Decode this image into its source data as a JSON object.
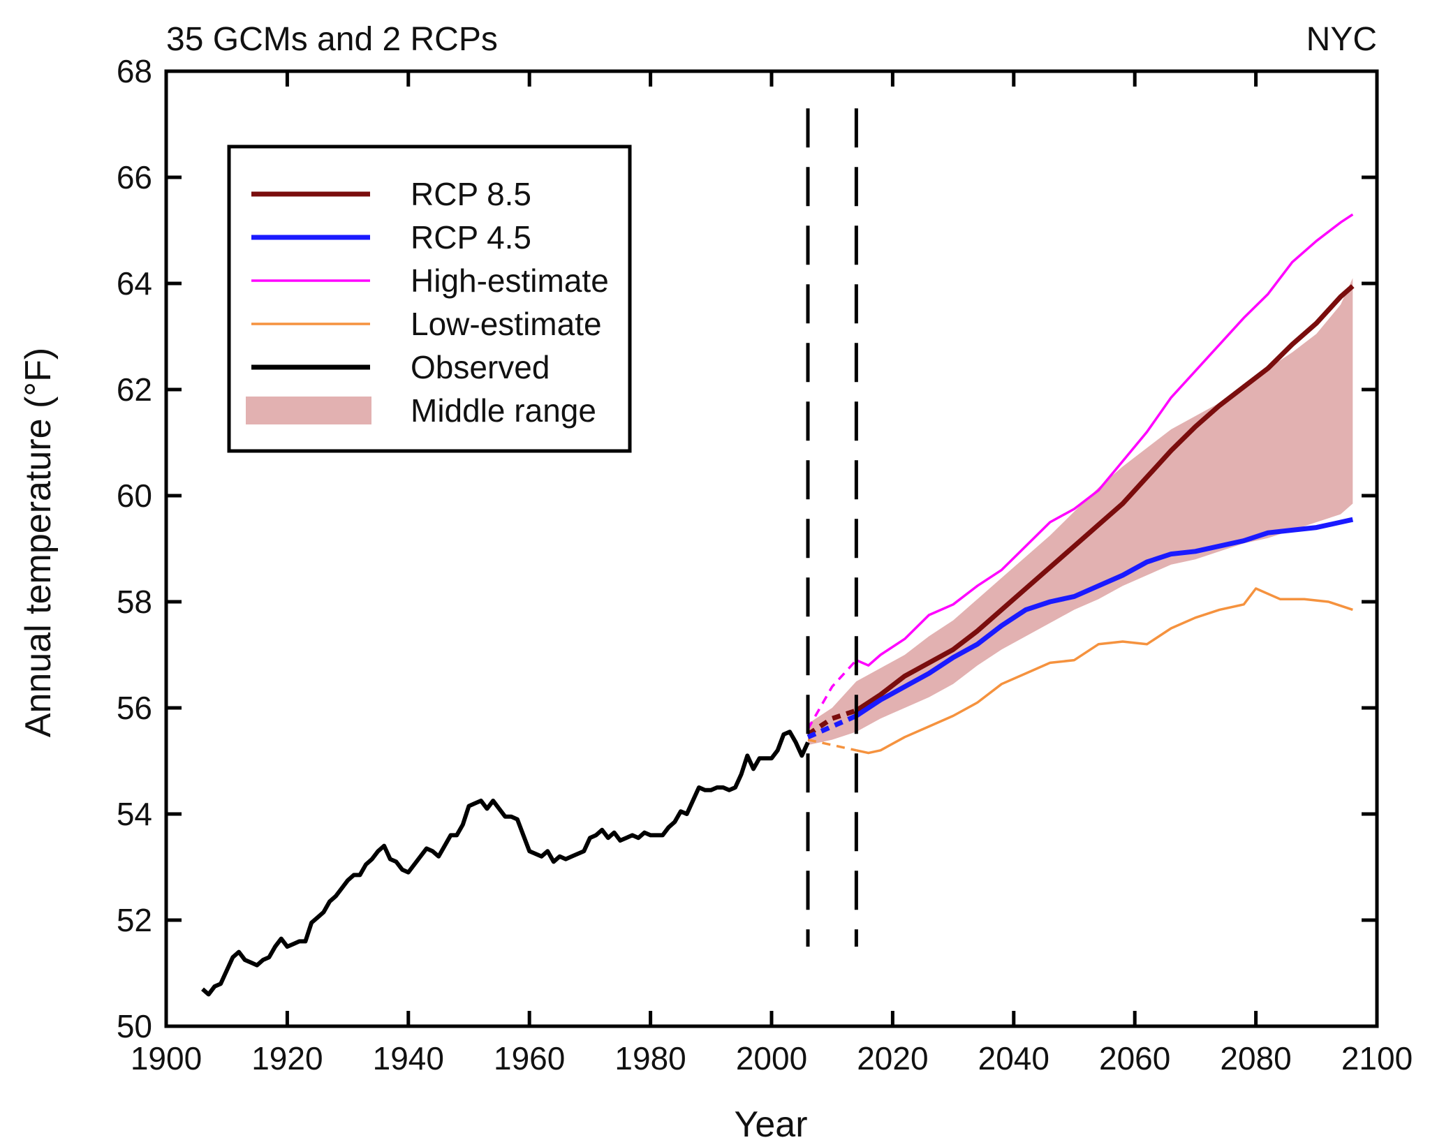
{
  "chart_data": {
    "type": "line",
    "title_left": "35 GCMs and 2 RCPs",
    "title_right": "NYC",
    "xlabel": "Year",
    "ylabel": "Annual temperature (°F)",
    "xlim": [
      1900,
      2100
    ],
    "ylim": [
      50,
      68
    ],
    "xticks": [
      1900,
      1920,
      1940,
      1960,
      1980,
      2000,
      2020,
      2040,
      2060,
      2080,
      2100
    ],
    "yticks": [
      50,
      52,
      54,
      56,
      58,
      60,
      62,
      64,
      66,
      68
    ],
    "grid": false,
    "legend_position": "top-left",
    "legend": [
      {
        "label": "RCP 8.5",
        "color": "#7a0d0d",
        "style": "thick-line"
      },
      {
        "label": "RCP 4.5",
        "color": "#1a1aff",
        "style": "thick-line"
      },
      {
        "label": "High-estimate",
        "color": "#ff00ff",
        "style": "thin-line"
      },
      {
        "label": "Low-estimate",
        "color": "#f5923e",
        "style": "thin-line"
      },
      {
        "label": "Observed",
        "color": "#000000",
        "style": "thick-line"
      },
      {
        "label": "Middle range",
        "color": "#e2b1b1",
        "style": "band"
      }
    ],
    "vertical_dashed_lines_x": [
      2006,
      2014
    ],
    "series": [
      {
        "name": "Observed",
        "color": "#000000",
        "x": [
          1906,
          1907,
          1908,
          1909,
          1910,
          1911,
          1912,
          1913,
          1914,
          1915,
          1916,
          1917,
          1918,
          1919,
          1920,
          1921,
          1922,
          1923,
          1924,
          1925,
          1926,
          1927,
          1928,
          1929,
          1930,
          1931,
          1932,
          1933,
          1934,
          1935,
          1936,
          1937,
          1938,
          1939,
          1940,
          1941,
          1942,
          1943,
          1944,
          1945,
          1946,
          1947,
          1948,
          1949,
          1950,
          1951,
          1952,
          1953,
          1954,
          1955,
          1956,
          1957,
          1958,
          1959,
          1960,
          1961,
          1962,
          1963,
          1964,
          1965,
          1966,
          1967,
          1968,
          1969,
          1970,
          1971,
          1972,
          1973,
          1974,
          1975,
          1976,
          1977,
          1978,
          1979,
          1980,
          1981,
          1982,
          1983,
          1984,
          1985,
          1986,
          1987,
          1988,
          1989,
          1990,
          1991,
          1992,
          1993,
          1994,
          1995,
          1996,
          1997,
          1998,
          1999,
          2000,
          2001,
          2002,
          2003,
          2004,
          2005,
          2006
        ],
        "values": [
          50.7,
          50.6,
          50.75,
          50.8,
          51.05,
          51.3,
          51.4,
          51.25,
          51.2,
          51.15,
          51.25,
          51.3,
          51.5,
          51.65,
          51.5,
          51.55,
          51.6,
          51.6,
          51.95,
          52.05,
          52.15,
          52.35,
          52.45,
          52.6,
          52.75,
          52.85,
          52.85,
          53.05,
          53.15,
          53.3,
          53.4,
          53.15,
          53.1,
          52.95,
          52.9,
          53.05,
          53.2,
          53.35,
          53.3,
          53.2,
          53.4,
          53.6,
          53.6,
          53.8,
          54.15,
          54.2,
          54.25,
          54.1,
          54.25,
          54.1,
          53.95,
          53.95,
          53.9,
          53.6,
          53.3,
          53.25,
          53.2,
          53.3,
          53.1,
          53.2,
          53.15,
          53.2,
          53.25,
          53.3,
          53.55,
          53.6,
          53.7,
          53.55,
          53.65,
          53.5,
          53.55,
          53.6,
          53.55,
          53.65,
          53.6,
          53.6,
          53.6,
          53.75,
          53.85,
          54.05,
          54.0,
          54.25,
          54.5,
          54.45,
          54.45,
          54.5,
          54.5,
          54.45,
          54.5,
          54.75,
          55.1,
          54.85,
          55.05,
          55.05,
          55.05,
          55.2,
          55.5,
          55.55,
          55.35,
          55.1,
          55.35
        ]
      },
      {
        "name": "RCP 8.5",
        "color": "#7a0d0d",
        "x": [
          2006,
          2010,
          2014,
          2018,
          2022,
          2026,
          2030,
          2034,
          2038,
          2042,
          2046,
          2050,
          2054,
          2058,
          2062,
          2066,
          2070,
          2074,
          2078,
          2082,
          2086,
          2090,
          2094,
          2096
        ],
        "values": [
          55.5,
          55.8,
          55.95,
          56.25,
          56.6,
          56.85,
          57.1,
          57.45,
          57.85,
          58.25,
          58.65,
          59.05,
          59.45,
          59.85,
          60.35,
          60.85,
          61.3,
          61.7,
          62.05,
          62.4,
          62.85,
          63.25,
          63.75,
          63.95
        ]
      },
      {
        "name": "RCP 4.5",
        "color": "#1a1aff",
        "x": [
          2006,
          2010,
          2014,
          2018,
          2022,
          2026,
          2030,
          2034,
          2038,
          2042,
          2046,
          2050,
          2054,
          2058,
          2062,
          2066,
          2070,
          2074,
          2078,
          2082,
          2086,
          2090,
          2094,
          2096
        ],
        "values": [
          55.45,
          55.65,
          55.85,
          56.15,
          56.4,
          56.65,
          56.95,
          57.2,
          57.55,
          57.85,
          58.0,
          58.1,
          58.3,
          58.5,
          58.75,
          58.9,
          58.95,
          59.05,
          59.15,
          59.3,
          59.35,
          59.4,
          59.5,
          59.55
        ]
      },
      {
        "name": "High-estimate",
        "color": "#ff00ff",
        "x": [
          2006,
          2010,
          2014,
          2016,
          2018,
          2022,
          2026,
          2030,
          2034,
          2038,
          2042,
          2046,
          2050,
          2054,
          2058,
          2062,
          2066,
          2070,
          2074,
          2078,
          2082,
          2086,
          2090,
          2094,
          2096
        ],
        "values": [
          55.6,
          56.4,
          56.9,
          56.8,
          57.0,
          57.3,
          57.75,
          57.95,
          58.3,
          58.6,
          59.05,
          59.5,
          59.75,
          60.1,
          60.65,
          61.2,
          61.85,
          62.35,
          62.85,
          63.35,
          63.8,
          64.4,
          64.8,
          65.15,
          65.3
        ]
      },
      {
        "name": "Low-estimate",
        "color": "#f5923e",
        "x": [
          2006,
          2010,
          2014,
          2016,
          2018,
          2022,
          2026,
          2030,
          2034,
          2038,
          2042,
          2046,
          2050,
          2054,
          2058,
          2062,
          2066,
          2070,
          2074,
          2078,
          2080,
          2084,
          2088,
          2092,
          2096
        ],
        "values": [
          55.4,
          55.3,
          55.2,
          55.15,
          55.2,
          55.45,
          55.65,
          55.85,
          56.1,
          56.45,
          56.65,
          56.85,
          56.9,
          57.2,
          57.25,
          57.2,
          57.5,
          57.7,
          57.85,
          57.95,
          58.25,
          58.05,
          58.05,
          58.0,
          57.85
        ]
      },
      {
        "name": "Middle range",
        "color": "#e2b1b1",
        "x": [
          2006,
          2010,
          2014,
          2018,
          2022,
          2026,
          2030,
          2034,
          2038,
          2042,
          2046,
          2050,
          2054,
          2058,
          2062,
          2066,
          2070,
          2074,
          2078,
          2082,
          2086,
          2090,
          2094,
          2096
        ],
        "low": [
          55.3,
          55.4,
          55.55,
          55.8,
          56.0,
          56.2,
          56.45,
          56.8,
          57.1,
          57.35,
          57.6,
          57.85,
          58.05,
          58.3,
          58.5,
          58.7,
          58.8,
          58.95,
          59.1,
          59.2,
          59.35,
          59.5,
          59.65,
          59.85
        ],
        "high": [
          55.7,
          56.0,
          56.5,
          56.75,
          57.0,
          57.35,
          57.65,
          58.05,
          58.45,
          58.85,
          59.25,
          59.7,
          60.15,
          60.55,
          60.9,
          61.25,
          61.5,
          61.75,
          62.05,
          62.4,
          62.7,
          63.05,
          63.6,
          64.1
        ]
      }
    ]
  }
}
